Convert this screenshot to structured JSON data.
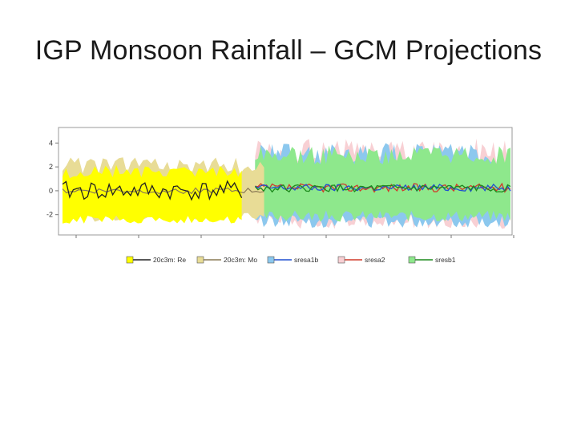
{
  "slide": {
    "title": "IGP Monsoon Rainfall – GCM Projections"
  },
  "chart_data": {
    "type": "area",
    "title": "",
    "xlabel": "",
    "ylabel": "",
    "ylim": [
      -3.7,
      5.3
    ],
    "y_ticks": [
      -2,
      0,
      2,
      4
    ],
    "grid": false,
    "legend_position": "bottom",
    "colors": {
      "obs_band": "#ffff00",
      "model20c_band": "#e8dc96",
      "sresa1b_band": "#8cc8ee",
      "sresa2_band": "#f8d0d4",
      "sresb1_band": "#8ee88c",
      "obs_line": "#222222",
      "model20c_line": "#8a7a55",
      "sresa1b_line": "#1f4fd0",
      "sresa2_line": "#d03a2a",
      "sresb1_line": "#1c8a1c"
    },
    "series": [
      {
        "name": "20c3m: Re",
        "band": [
          -2.8,
          2.2
        ],
        "mean": 0.0,
        "x_range": [
          0.0,
          0.4
        ]
      },
      {
        "name": "20c3m: Mo",
        "band": [
          -2.6,
          2.8
        ],
        "mean": 0.0,
        "x_range": [
          0.0,
          0.45
        ]
      },
      {
        "name": "sresa1b",
        "band": [
          -3.1,
          4.1
        ],
        "mean": 0.25,
        "x_range": [
          0.43,
          1.0
        ]
      },
      {
        "name": "sresa2",
        "band": [
          -3.2,
          4.4
        ],
        "mean": 0.25,
        "x_range": [
          0.43,
          1.0
        ]
      },
      {
        "name": "sresb1",
        "band": [
          -2.6,
          3.8
        ],
        "mean": 0.2,
        "x_range": [
          0.43,
          1.0
        ]
      }
    ]
  }
}
